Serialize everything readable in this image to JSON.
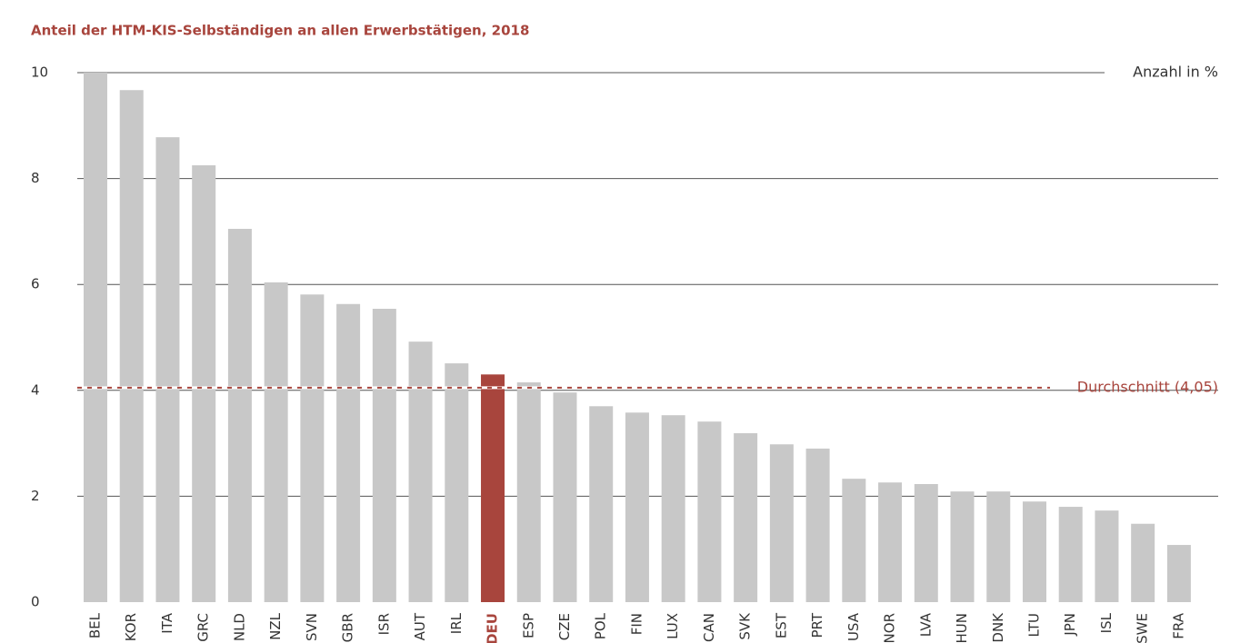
{
  "chart_data": {
    "type": "bar",
    "title": "Anteil der HTM-KIS-Selbständigen an allen Erwerbstätigen, 2018",
    "unit_label": "Anzahl in %",
    "categories": [
      "BEL",
      "KOR",
      "ITA",
      "GRC",
      "NLD",
      "NZL",
      "SVN",
      "GBR",
      "ISR",
      "AUT",
      "IRL",
      "DEU",
      "ESP",
      "CZE",
      "POL",
      "FIN",
      "LUX",
      "CAN",
      "SVK",
      "EST",
      "PRT",
      "USA",
      "NOR",
      "LVA",
      "HUN",
      "DNK",
      "LTU",
      "JPN",
      "ISL",
      "SWE",
      "FRA"
    ],
    "values": [
      10.0,
      9.67,
      8.78,
      8.25,
      7.05,
      6.04,
      5.81,
      5.63,
      5.54,
      4.92,
      4.51,
      4.3,
      4.15,
      3.96,
      3.7,
      3.58,
      3.53,
      3.41,
      3.19,
      2.98,
      2.9,
      2.33,
      2.26,
      2.23,
      2.09,
      2.09,
      1.9,
      1.8,
      1.73,
      1.48,
      1.08
    ],
    "color": "#c8c8c8",
    "highlight": "DEU",
    "highlight_color": "#a8453d",
    "average": {
      "value": 4.05,
      "label": "Durchschnitt (4,05)"
    },
    "ylim": [
      0,
      10
    ],
    "yticks": [
      0,
      2,
      4,
      6,
      8,
      10
    ],
    "grid": true
  }
}
